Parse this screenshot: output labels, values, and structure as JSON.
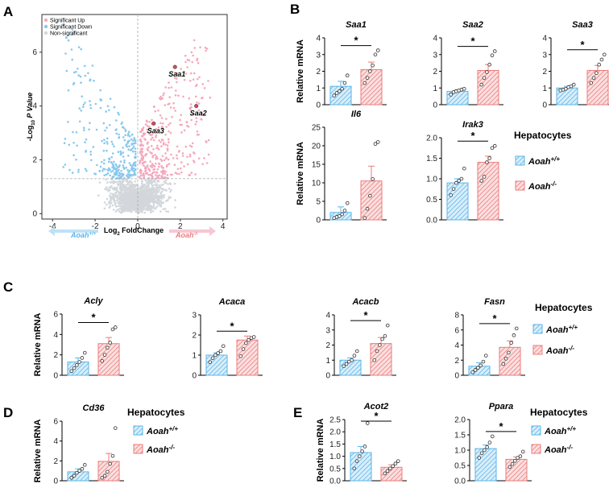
{
  "colors": {
    "wt": "#5bb5ea",
    "ko": "#ec7b7b",
    "sig_up": "#f4a9bd",
    "sig_down": "#89c8ee",
    "nonsig": "#d3d7db",
    "highlight": "#d44a55"
  },
  "panels": {
    "a": "A",
    "b": "B",
    "c": "C",
    "d": "D",
    "e": "E"
  },
  "legend": {
    "title": "Hepatocytes",
    "wt_base": "Aoah",
    "wt_sup": "+/+",
    "ko_base": "Aoah",
    "ko_sup": "-/-"
  },
  "volcano": {
    "legend": [
      "Significant Up",
      "Significant Down",
      "Non-significant"
    ],
    "ylabel_pre": "-Log",
    "ylabel_sub": "10",
    "ylabel_post": " P Value",
    "xlabel_pre": "Log",
    "xlabel_sub": "2",
    "xlabel_post": " FoldChange",
    "left_arrow_base": "Aoah",
    "left_arrow_sup": "+/+",
    "right_arrow_base": "Aoah",
    "right_arrow_sup": "-/-",
    "highlighted_genes": [
      "Saa1",
      "Saa2",
      "Saa3"
    ]
  },
  "chart_data": [
    {
      "type": "scatter",
      "title": "",
      "xlabel": "Log2 FoldChange",
      "ylabel": "-Log10 P Value",
      "xlim": [
        -4.5,
        4.2
      ],
      "ylim": [
        -0.2,
        7.4
      ],
      "xticks": [
        -4,
        -2,
        0,
        2,
        4
      ],
      "yticks": [
        0,
        2,
        4,
        6
      ],
      "thresholds": {
        "x": [
          0
        ],
        "y": 1.3
      },
      "labeled_points": [
        {
          "name": "Saa1",
          "x": 1.75,
          "y": 5.45
        },
        {
          "name": "Saa2",
          "x": 2.75,
          "y": 4.0
        },
        {
          "name": "Saa3",
          "x": 0.75,
          "y": 3.35
        }
      ]
    },
    {
      "type": "bar",
      "title": "Saa1",
      "categories": [
        "Aoah+/+",
        "Aoah-/-"
      ],
      "values": [
        1.1,
        2.1
      ],
      "errors": [
        0.3,
        0.45
      ],
      "points": [
        [
          0.55,
          0.7,
          0.8,
          0.95,
          1.3,
          1.75
        ],
        [
          1.3,
          1.6,
          2.0,
          2.35,
          3.0,
          3.25
        ]
      ],
      "ylabel": "Relative mRNA",
      "ylim": [
        0,
        4
      ],
      "yticks": [
        0,
        1,
        2,
        3,
        4
      ],
      "significance": "*"
    },
    {
      "type": "bar",
      "title": "Saa2",
      "categories": [
        "Aoah+/+",
        "Aoah-/-"
      ],
      "values": [
        0.8,
        2.05
      ],
      "errors": [
        0.1,
        0.35
      ],
      "points": [
        [
          0.6,
          0.75,
          0.8,
          0.85,
          0.9,
          0.95
        ],
        [
          1.2,
          1.6,
          1.95,
          2.4,
          2.95,
          3.2
        ]
      ],
      "ylabel": "",
      "ylim": [
        0,
        4
      ],
      "yticks": [
        0,
        1,
        2,
        3,
        4
      ],
      "significance": "*"
    },
    {
      "type": "bar",
      "title": "Saa3",
      "categories": [
        "Aoah+/+",
        "Aoah-/-"
      ],
      "values": [
        1.0,
        2.05
      ],
      "errors": [
        0.1,
        0.3
      ],
      "points": [
        [
          0.85,
          0.9,
          0.95,
          1.05,
          1.1,
          1.2
        ],
        [
          1.3,
          1.6,
          1.9,
          2.4,
          2.7,
          3.0
        ]
      ],
      "ylabel": "",
      "ylim": [
        0,
        4
      ],
      "yticks": [
        0,
        1,
        2,
        3,
        4
      ],
      "significance": "*"
    },
    {
      "type": "bar",
      "title": "Il6",
      "categories": [
        "Aoah+/+",
        "Aoah-/-"
      ],
      "values": [
        2.0,
        10.5
      ],
      "errors": [
        1.5,
        4.0
      ],
      "points": [
        [
          0.5,
          0.8,
          1.0,
          1.5,
          2.5,
          4.5
        ],
        [
          0.5,
          3.0,
          6.5,
          11.0,
          20.5,
          21.0
        ]
      ],
      "ylabel": "Relative mRNA",
      "ylim": [
        0,
        25
      ],
      "yticks": [
        0,
        5,
        10,
        15,
        20,
        25
      ],
      "significance": ""
    },
    {
      "type": "bar",
      "title": "Irak3",
      "categories": [
        "Aoah+/+",
        "Aoah-/-"
      ],
      "values": [
        0.9,
        1.4
      ],
      "errors": [
        0.1,
        0.15
      ],
      "points": [
        [
          0.6,
          0.75,
          0.9,
          0.95,
          1.0,
          1.25
        ],
        [
          0.95,
          1.05,
          1.4,
          1.5,
          1.75,
          1.8
        ]
      ],
      "ylabel": "",
      "ylim": [
        0,
        2.0
      ],
      "yticks": [
        0,
        0.5,
        1.0,
        1.5,
        2.0
      ],
      "significance": "*"
    },
    {
      "type": "bar",
      "title": "Acly",
      "categories": [
        "Aoah+/+",
        "Aoah-/-"
      ],
      "values": [
        1.3,
        3.1
      ],
      "errors": [
        0.4,
        0.6
      ],
      "points": [
        [
          0.4,
          0.7,
          1.0,
          1.3,
          1.7,
          2.2
        ],
        [
          1.4,
          2.0,
          2.7,
          3.2,
          4.5,
          4.7
        ]
      ],
      "ylabel": "Relative mRNA",
      "ylim": [
        0,
        6
      ],
      "yticks": [
        0,
        2,
        4,
        6
      ],
      "significance": "*"
    },
    {
      "type": "bar",
      "title": "Acaca",
      "categories": [
        "Aoah+/+",
        "Aoah-/-"
      ],
      "values": [
        1.0,
        1.75
      ],
      "errors": [
        0.12,
        0.2
      ],
      "points": [
        [
          0.65,
          0.85,
          1.0,
          1.1,
          1.2,
          1.45
        ],
        [
          0.95,
          1.3,
          1.6,
          1.75,
          1.85,
          1.9
        ]
      ],
      "ylabel": "",
      "ylim": [
        0,
        3
      ],
      "yticks": [
        0,
        1,
        2,
        3
      ],
      "significance": "*"
    },
    {
      "type": "bar",
      "title": "Acacb",
      "categories": [
        "Aoah+/+",
        "Aoah-/-"
      ],
      "values": [
        1.0,
        2.1
      ],
      "errors": [
        0.15,
        0.4
      ],
      "points": [
        [
          0.6,
          0.75,
          0.9,
          1.0,
          1.3,
          1.6
        ],
        [
          1.0,
          1.6,
          2.0,
          2.4,
          2.6,
          3.3
        ]
      ],
      "ylabel": "",
      "ylim": [
        0,
        4
      ],
      "yticks": [
        0,
        1,
        2,
        3,
        4
      ],
      "significance": "*"
    },
    {
      "type": "bar",
      "title": "Fasn",
      "categories": [
        "Aoah+/+",
        "Aoah-/-"
      ],
      "values": [
        1.2,
        3.7
      ],
      "errors": [
        0.45,
        0.85
      ],
      "points": [
        [
          0.4,
          0.7,
          1.0,
          1.3,
          1.8,
          2.6
        ],
        [
          1.5,
          2.2,
          3.0,
          4.3,
          5.3,
          6.2
        ]
      ],
      "ylabel": "",
      "ylim": [
        0,
        8
      ],
      "yticks": [
        0,
        2,
        4,
        6,
        8
      ],
      "significance": "*"
    },
    {
      "type": "bar",
      "title": "Cd36",
      "categories": [
        "Aoah+/+",
        "Aoah-/-"
      ],
      "values": [
        0.9,
        1.95
      ],
      "errors": [
        0.3,
        0.8
      ],
      "points": [
        [
          0.3,
          0.5,
          0.8,
          1.0,
          1.2,
          1.6
        ],
        [
          0.3,
          0.5,
          0.9,
          1.7,
          2.5,
          5.3
        ]
      ],
      "ylabel": "Relative mRNA",
      "ylim": [
        0,
        6
      ],
      "yticks": [
        0,
        2,
        4,
        6
      ],
      "significance": ""
    },
    {
      "type": "bar",
      "title": "Acot2",
      "categories": [
        "Aoah+/+",
        "Aoah-/-"
      ],
      "values": [
        1.15,
        0.55
      ],
      "errors": [
        0.25,
        0.1
      ],
      "points": [
        [
          0.5,
          0.8,
          1.0,
          1.2,
          1.4,
          2.35
        ],
        [
          0.3,
          0.4,
          0.5,
          0.6,
          0.7,
          0.8
        ]
      ],
      "ylabel": "Relative mRNA",
      "ylim": [
        0,
        2.5
      ],
      "yticks": [
        0,
        0.5,
        1.0,
        1.5,
        2.0,
        2.5
      ],
      "significance": "*"
    },
    {
      "type": "bar",
      "title": "Ppara",
      "categories": [
        "Aoah+/+",
        "Aoah-/-"
      ],
      "values": [
        1.05,
        0.7
      ],
      "errors": [
        0.12,
        0.08
      ],
      "points": [
        [
          0.75,
          0.9,
          1.0,
          1.1,
          1.25,
          1.45
        ],
        [
          0.45,
          0.55,
          0.65,
          0.75,
          0.8,
          0.95
        ]
      ],
      "ylabel": "",
      "ylim": [
        0,
        2.0
      ],
      "yticks": [
        0,
        0.5,
        1.0,
        1.5,
        2.0
      ],
      "significance": "*"
    }
  ]
}
